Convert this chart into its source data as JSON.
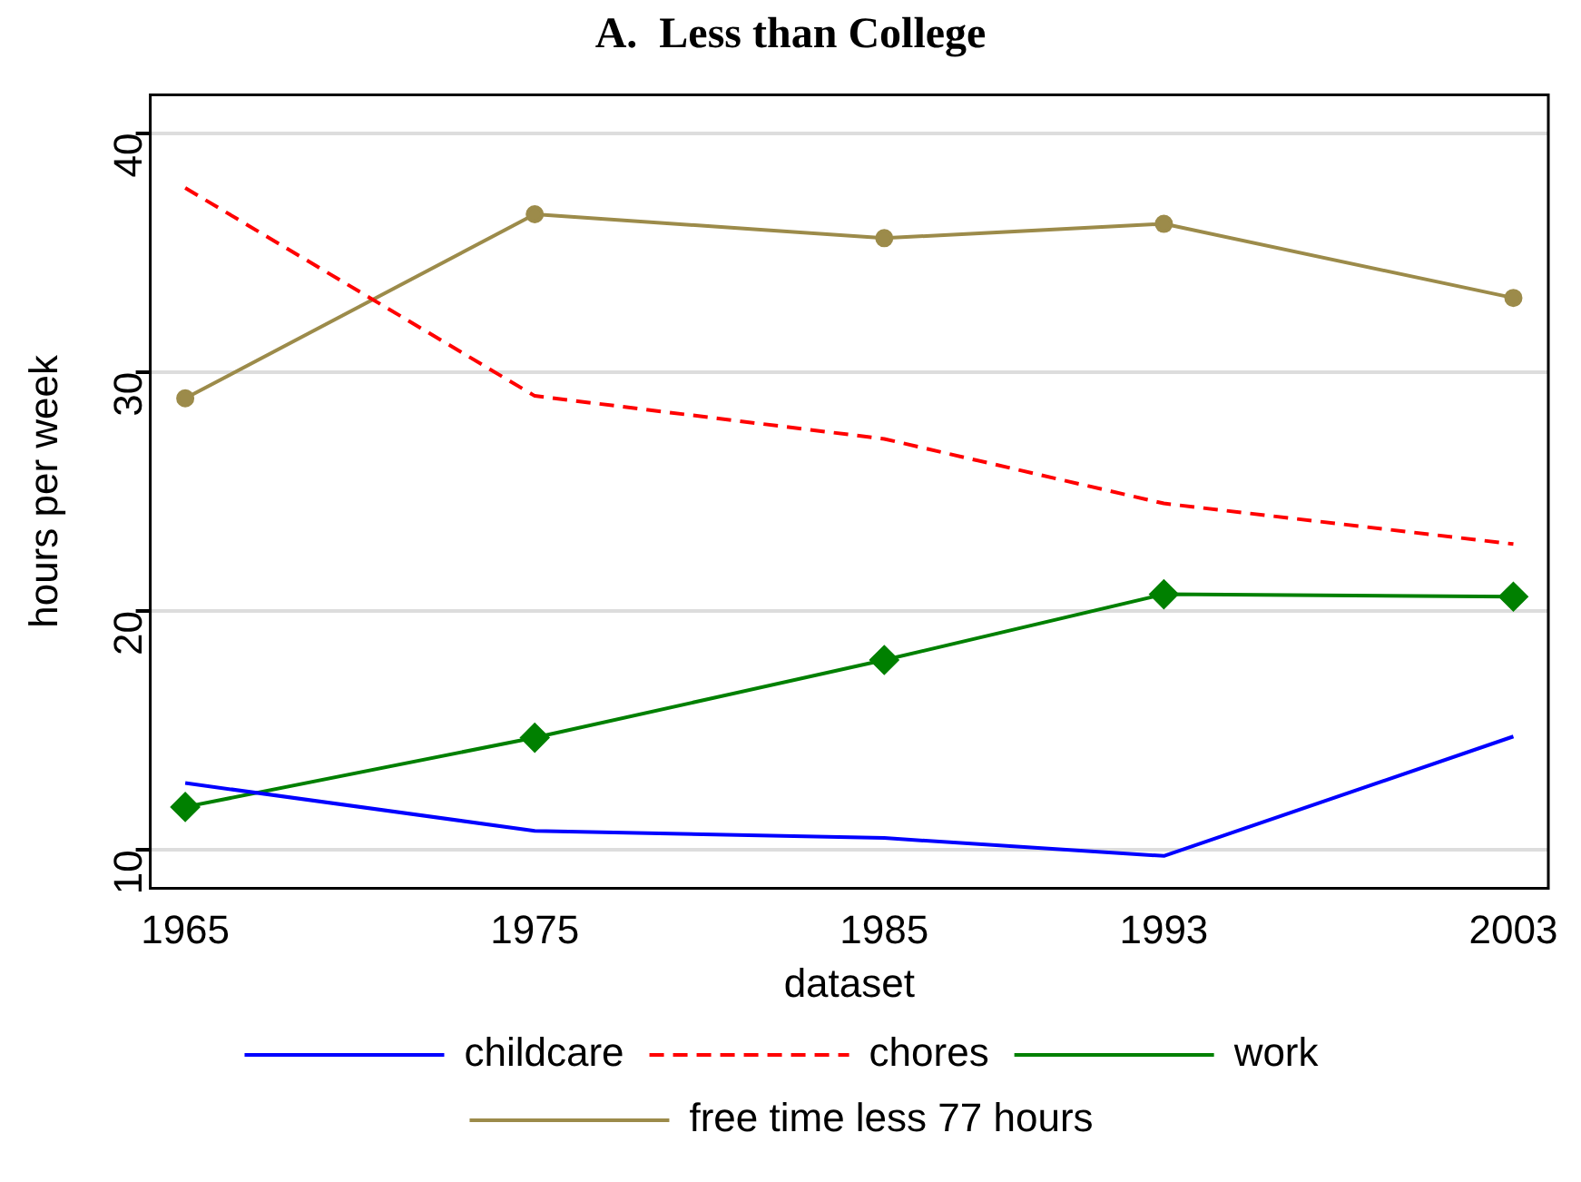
{
  "chart_data": {
    "type": "line",
    "title": "A.  Less than College",
    "xlabel": "dataset",
    "ylabel": "hours per week",
    "x": [
      1965,
      1975,
      1985,
      1993,
      2003
    ],
    "xlim": [
      1964,
      2004
    ],
    "xticks": [
      1965,
      1975,
      1985,
      1993,
      2003
    ],
    "ylim": [
      8.4,
      41.6
    ],
    "yticks": [
      10,
      20,
      30,
      40
    ],
    "grid": "y",
    "legend": "bottom",
    "series": [
      {
        "name": "childcare",
        "color": "#0000ff",
        "values": [
          12.8,
          10.8,
          10.5,
          9.75,
          14.75
        ],
        "marker": "none",
        "line_style": "solid"
      },
      {
        "name": "chores",
        "color": "#ff0000",
        "values": [
          37.7,
          29.0,
          27.2,
          24.5,
          22.8
        ],
        "marker": "none",
        "line_style": "dashed"
      },
      {
        "name": "work",
        "color": "#008000",
        "values": [
          11.8,
          14.7,
          17.95,
          20.7,
          20.6
        ],
        "marker": "diamond",
        "line_style": "solid"
      },
      {
        "name": "free time less 77 hours",
        "color": "#9c8b4a",
        "values": [
          28.9,
          36.6,
          35.6,
          36.2,
          33.1
        ],
        "marker": "circle",
        "line_style": "solid"
      }
    ]
  }
}
